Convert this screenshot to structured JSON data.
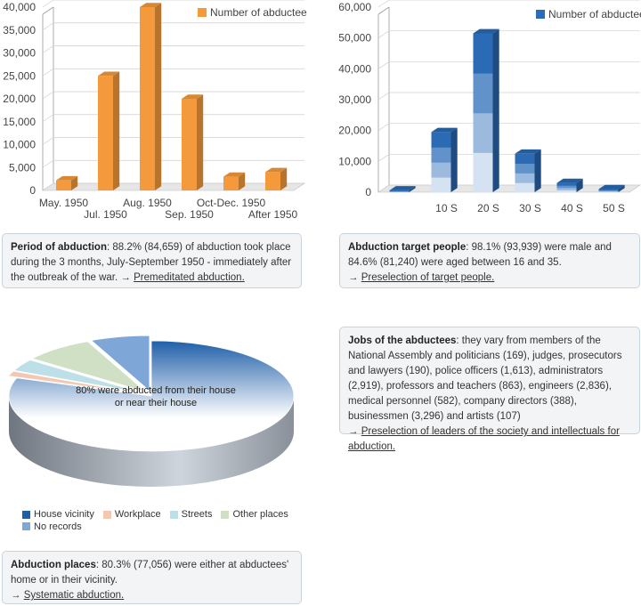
{
  "chart_data": [
    {
      "type": "bar",
      "categories": [
        "May. 1950",
        "Jul. 1950",
        "Aug. 1950",
        "Sep. 1950",
        "Oct-Dec. 1950",
        "After 1950"
      ],
      "series": [
        {
          "name": "Number of abductees",
          "values": [
            2200,
            25000,
            40000,
            20000,
            3000,
            4000
          ]
        }
      ],
      "yticks": [
        "0",
        "5,000",
        "10,000",
        "15,000",
        "20,000",
        "25,000",
        "30,000",
        "35,000",
        "40,000"
      ],
      "ylim": [
        0,
        40000
      ],
      "color": "#f59a3c",
      "legend": "top-right"
    },
    {
      "type": "bar",
      "categories": [
        "",
        "10 S",
        "20 S",
        "30 S",
        "40 S",
        "50 S"
      ],
      "series": [
        {
          "name": "Number of abductees",
          "values": [
            600,
            19500,
            51500,
            12500,
            3000,
            1000
          ]
        }
      ],
      "yticks": [
        "0",
        "10,000",
        "20,000",
        "30,000",
        "40,000",
        "50,000",
        "60,000"
      ],
      "ylim": [
        0,
        60000
      ],
      "color": "#2b6cb8",
      "legend": "top-right"
    },
    {
      "type": "pie",
      "categories": [
        "House vicinity",
        "Workplace",
        "Streets",
        "Other places",
        "No records"
      ],
      "values": [
        80.3,
        1.5,
        3.5,
        8.0,
        6.7
      ],
      "colors": [
        "#1f5fa8",
        "#f2c8b0",
        "#bde0e8",
        "#cfe0c4",
        "#7ea6d6"
      ],
      "annotation": "80% were abducted from their house or near their house",
      "legend": "bottom"
    }
  ],
  "boxes": {
    "period": {
      "title": "Period of abduction",
      "text": ": 88.2% (84,659) of abduction took place during the 3 months, July-September 1950 - immediately after the outbreak of the war. → ",
      "link": "Premeditated abduction."
    },
    "target": {
      "title": "Abduction target people",
      "text": ": 98.1% (93,939) were male and 84.6% (81,240) were aged between 16 and 35.",
      "arrow": "→ ",
      "link": "Preselection of target people."
    },
    "jobs": {
      "title": "Jobs of the abductees",
      "text": ": they vary from members of the National Assembly and politicians (169), judges, prosecutors and lawyers (190), police officers (1,613), administrators (2,919), professors and teachers (863), engineers (2,836), medical personnel (582), company directors (388), businessmen (3,296) and artists (107)",
      "arrow": "→ ",
      "link": "Preselection of leaders of the society and intellectuals for abduction."
    },
    "places": {
      "title": "Abduction places",
      "text": ": 80.3% (77,056) were either at abductees' home or in their vicinity.",
      "arrow": "→ ",
      "link": "Systematic abduction."
    }
  }
}
